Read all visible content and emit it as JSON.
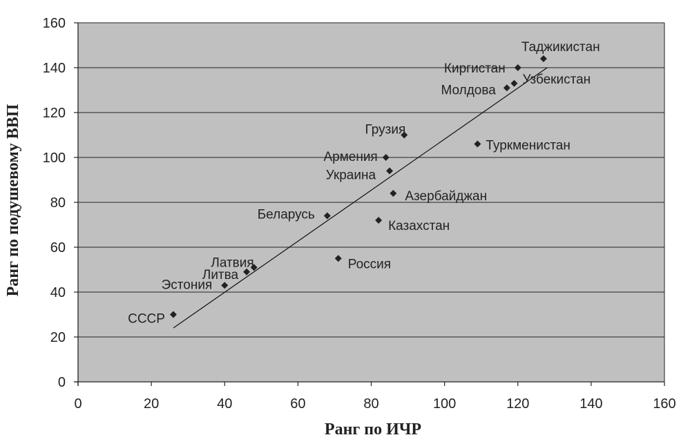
{
  "chart_data": {
    "type": "scatter",
    "title": "",
    "xlabel": "Ранг по ИЧР",
    "ylabel": "Ранг по подушевому ВВП",
    "xlim": [
      0,
      160
    ],
    "ylim": [
      0,
      160
    ],
    "xticks": [
      0,
      20,
      40,
      60,
      80,
      100,
      120,
      140,
      160
    ],
    "yticks": [
      0,
      20,
      40,
      60,
      80,
      100,
      120,
      140,
      160
    ],
    "grid": "horizontal",
    "plot_background": "#c0c0c0",
    "marker_color": "#222222",
    "points": [
      {
        "label": "Таджикистан",
        "x": 127,
        "y": 144
      },
      {
        "label": "Киргистан",
        "x": 120,
        "y": 140
      },
      {
        "label": "Узбекистан",
        "x": 119,
        "y": 133
      },
      {
        "label": "Молдова",
        "x": 117,
        "y": 131
      },
      {
        "label": "Грузия",
        "x": 89,
        "y": 110
      },
      {
        "label": "Туркменистан",
        "x": 109,
        "y": 106
      },
      {
        "label": "Армения",
        "x": 84,
        "y": 100
      },
      {
        "label": "Украина",
        "x": 85,
        "y": 94
      },
      {
        "label": "Азербайджан",
        "x": 86,
        "y": 84
      },
      {
        "label": "Беларусь",
        "x": 68,
        "y": 74
      },
      {
        "label": "Казахстан",
        "x": 82,
        "y": 72
      },
      {
        "label": "Россия",
        "x": 71,
        "y": 55
      },
      {
        "label": "Латвия",
        "x": 48,
        "y": 51
      },
      {
        "label": "Литва",
        "x": 46,
        "y": 49
      },
      {
        "label": "Эстония",
        "x": 40,
        "y": 43
      },
      {
        "label": "СССР",
        "x": 26,
        "y": 30
      }
    ],
    "trendline": {
      "x": [
        26,
        128
      ],
      "y": [
        24,
        140
      ]
    }
  }
}
